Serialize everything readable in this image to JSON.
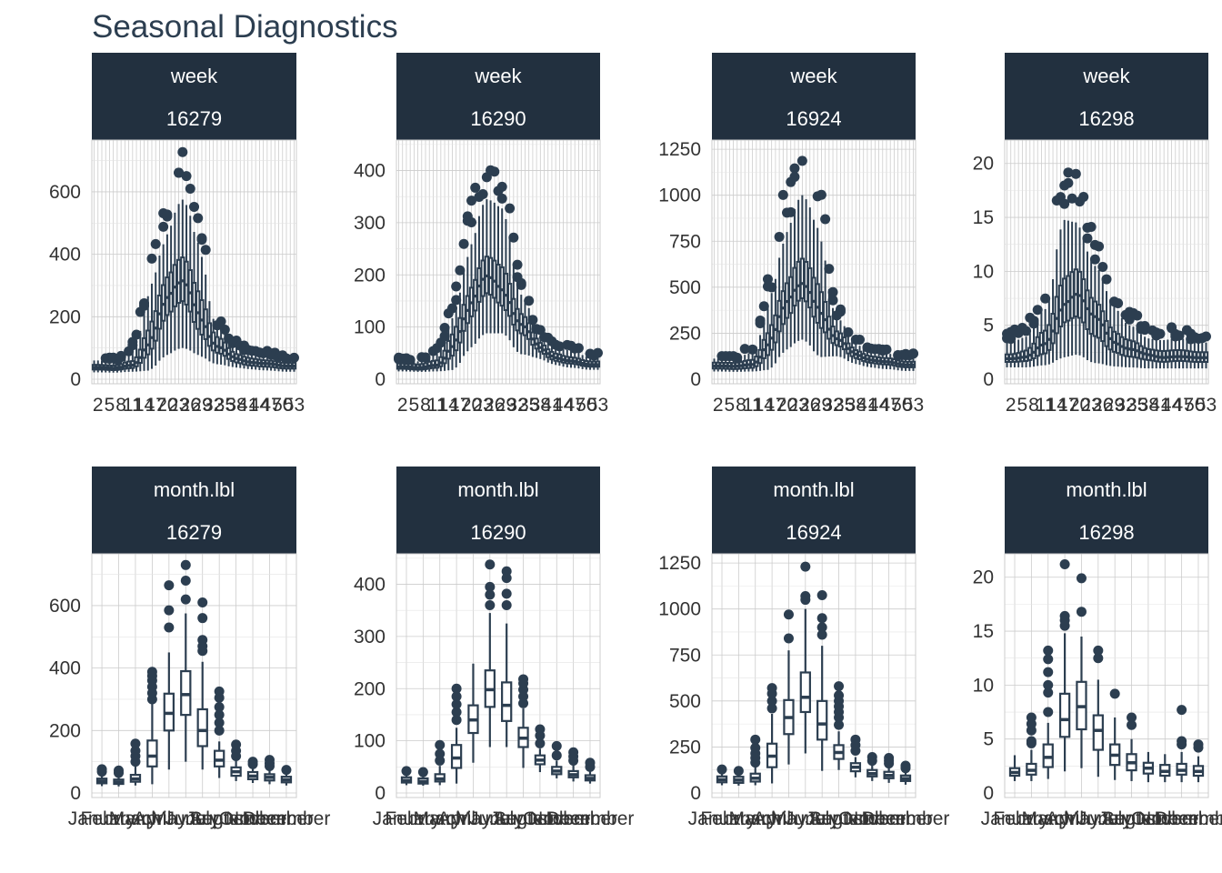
{
  "chart_data": {
    "type": "boxplot",
    "title": "Seasonal Diagnostics",
    "color": "#2c3e50",
    "strip_color": "#22303f",
    "facet_rows": [
      "week",
      "month.lbl"
    ],
    "facet_cols": [
      "16279",
      "16290",
      "16924",
      "16298"
    ],
    "week_tick_labels": [
      "2",
      "5",
      "8",
      "11",
      "14",
      "17",
      "20",
      "23",
      "26",
      "29",
      "32",
      "35",
      "38",
      "41",
      "44",
      "47",
      "50",
      "53"
    ],
    "month_tick_labels": [
      "January",
      "February",
      "March",
      "April",
      "May",
      "June",
      "July",
      "August",
      "September",
      "October",
      "November",
      "December"
    ],
    "panels": [
      {
        "row": "week",
        "col": "16279",
        "ylim": [
          0,
          760
        ],
        "yticks": [
          0,
          200,
          400,
          600
        ]
      },
      {
        "row": "week",
        "col": "16290",
        "ylim": [
          0,
          455
        ],
        "yticks": [
          0,
          100,
          200,
          300,
          400
        ]
      },
      {
        "row": "week",
        "col": "16924",
        "ylim": [
          0,
          1290
        ],
        "yticks": [
          0,
          250,
          500,
          750,
          1000,
          1250
        ]
      },
      {
        "row": "week",
        "col": "16298",
        "ylim": [
          0,
          22
        ],
        "yticks": [
          0,
          5,
          10,
          15,
          20
        ]
      },
      {
        "row": "month.lbl",
        "col": "16279",
        "ylim": [
          0,
          760
        ],
        "yticks": [
          0,
          200,
          400,
          600
        ],
        "boxes": [
          {
            "month": "January",
            "q1": 31,
            "med": 38,
            "q3": 46,
            "lo": 22,
            "hi": 60,
            "outliers": [
              68,
              76
            ]
          },
          {
            "month": "February",
            "q1": 29,
            "med": 35,
            "q3": 43,
            "lo": 21,
            "hi": 56,
            "outliers": [
              64,
              72
            ]
          },
          {
            "month": "March",
            "q1": 36,
            "med": 45,
            "q3": 58,
            "lo": 24,
            "hi": 88,
            "outliers": [
              100,
              118,
              135,
              158
            ]
          },
          {
            "month": "April",
            "q1": 85,
            "med": 118,
            "q3": 168,
            "lo": 28,
            "hi": 288,
            "outliers": [
              300,
              320,
              340,
              360,
              375,
              388
            ]
          },
          {
            "month": "May",
            "q1": 200,
            "med": 255,
            "q3": 318,
            "lo": 75,
            "hi": 450,
            "outliers": [
              530,
              585,
              665
            ]
          },
          {
            "month": "June",
            "q1": 250,
            "med": 315,
            "q3": 390,
            "lo": 100,
            "hi": 575,
            "outliers": [
              620,
              680,
              730
            ]
          },
          {
            "month": "July",
            "q1": 150,
            "med": 200,
            "q3": 268,
            "lo": 75,
            "hi": 420,
            "outliers": [
              455,
              470,
              490,
              560,
              610
            ]
          },
          {
            "month": "August",
            "q1": 85,
            "med": 105,
            "q3": 135,
            "lo": 48,
            "hi": 165,
            "outliers": [
              200,
              225,
              250,
              275,
              305,
              325
            ]
          },
          {
            "month": "September",
            "q1": 55,
            "med": 68,
            "q3": 82,
            "lo": 38,
            "hi": 105,
            "outliers": [
              118,
              135,
              155
            ]
          },
          {
            "month": "October",
            "q1": 44,
            "med": 54,
            "q3": 67,
            "lo": 32,
            "hi": 82,
            "outliers": [
              92,
              100
            ]
          },
          {
            "month": "November",
            "q1": 40,
            "med": 50,
            "q3": 60,
            "lo": 28,
            "hi": 76,
            "outliers": [
              86,
              95,
              106
            ]
          },
          {
            "month": "December",
            "q1": 34,
            "med": 42,
            "q3": 52,
            "lo": 24,
            "hi": 64,
            "outliers": [
              74
            ]
          }
        ]
      },
      {
        "row": "month.lbl",
        "col": "16290",
        "ylim": [
          0,
          455
        ],
        "yticks": [
          0,
          100,
          200,
          300,
          400
        ],
        "boxes": [
          {
            "month": "January",
            "q1": 20,
            "med": 24,
            "q3": 30,
            "lo": 15,
            "hi": 36,
            "outliers": [
              42
            ]
          },
          {
            "month": "February",
            "q1": 18,
            "med": 22,
            "q3": 28,
            "lo": 14,
            "hi": 34,
            "outliers": [
              40
            ]
          },
          {
            "month": "March",
            "q1": 22,
            "med": 27,
            "q3": 36,
            "lo": 15,
            "hi": 52,
            "outliers": [
              62,
              75,
              92
            ]
          },
          {
            "month": "April",
            "q1": 48,
            "med": 67,
            "q3": 92,
            "lo": 18,
            "hi": 125,
            "outliers": [
              140,
              155,
              170,
              185,
              200
            ]
          },
          {
            "month": "May",
            "q1": 115,
            "med": 140,
            "q3": 168,
            "lo": 58,
            "hi": 248,
            "outliers": []
          },
          {
            "month": "June",
            "q1": 165,
            "med": 198,
            "q3": 235,
            "lo": 88,
            "hi": 345,
            "outliers": [
              360,
              380,
              395,
              438
            ]
          },
          {
            "month": "July",
            "q1": 138,
            "med": 168,
            "q3": 212,
            "lo": 88,
            "hi": 325,
            "outliers": [
              360,
              382,
              412,
              425
            ]
          },
          {
            "month": "August",
            "q1": 88,
            "med": 105,
            "q3": 125,
            "lo": 48,
            "hi": 162,
            "outliers": [
              172,
              185,
              198,
              210,
              218
            ]
          },
          {
            "month": "September",
            "q1": 55,
            "med": 63,
            "q3": 72,
            "lo": 40,
            "hi": 85,
            "outliers": [
              95,
              110,
              122
            ]
          },
          {
            "month": "October",
            "q1": 36,
            "med": 42,
            "q3": 50,
            "lo": 28,
            "hi": 62,
            "outliers": [
              72,
              90
            ]
          },
          {
            "month": "November",
            "q1": 30,
            "med": 35,
            "q3": 42,
            "lo": 22,
            "hi": 55,
            "outliers": [
              62,
              70,
              78
            ]
          },
          {
            "month": "December",
            "q1": 24,
            "med": 28,
            "q3": 34,
            "lo": 18,
            "hi": 42,
            "outliers": [
              50,
              58
            ]
          }
        ]
      },
      {
        "row": "month.lbl",
        "col": "16924",
        "ylim": [
          0,
          1290
        ],
        "yticks": [
          0,
          250,
          500,
          750,
          1000,
          1250
        ],
        "boxes": [
          {
            "month": "January",
            "q1": 58,
            "med": 72,
            "q3": 90,
            "lo": 42,
            "hi": 112,
            "outliers": [
              128
            ]
          },
          {
            "month": "February",
            "q1": 55,
            "med": 70,
            "q3": 88,
            "lo": 40,
            "hi": 108,
            "outliers": [
              120
            ]
          },
          {
            "month": "March",
            "q1": 62,
            "med": 80,
            "q3": 105,
            "lo": 42,
            "hi": 145,
            "outliers": [
              165,
              190,
              215,
              245,
              290
            ]
          },
          {
            "month": "April",
            "q1": 140,
            "med": 200,
            "q3": 268,
            "lo": 52,
            "hi": 430,
            "outliers": [
              460,
              500,
              540,
              570
            ]
          },
          {
            "month": "May",
            "q1": 320,
            "med": 410,
            "q3": 505,
            "lo": 155,
            "hi": 775,
            "outliers": [
              840,
              970
            ]
          },
          {
            "month": "June",
            "q1": 440,
            "med": 520,
            "q3": 655,
            "lo": 215,
            "hi": 1000,
            "outliers": [
              1050,
              1070,
              1230
            ]
          },
          {
            "month": "July",
            "q1": 290,
            "med": 375,
            "q3": 500,
            "lo": 120,
            "hi": 800,
            "outliers": [
              860,
              900,
              950,
              1075
            ]
          },
          {
            "month": "August",
            "q1": 185,
            "med": 220,
            "q3": 260,
            "lo": 125,
            "hi": 335,
            "outliers": [
              370,
              410,
              440,
              470,
              500,
              530,
              580
            ]
          },
          {
            "month": "September",
            "q1": 118,
            "med": 140,
            "q3": 162,
            "lo": 85,
            "hi": 195,
            "outliers": [
              230,
              260,
              290
            ]
          },
          {
            "month": "October",
            "q1": 90,
            "med": 105,
            "q3": 125,
            "lo": 65,
            "hi": 155,
            "outliers": [
              175,
              195
            ]
          },
          {
            "month": "November",
            "q1": 80,
            "med": 95,
            "q3": 115,
            "lo": 55,
            "hi": 140,
            "outliers": [
              160,
              175,
              190
            ]
          },
          {
            "month": "December",
            "q1": 65,
            "med": 78,
            "q3": 95,
            "lo": 45,
            "hi": 118,
            "outliers": [
              135,
              148
            ]
          }
        ]
      },
      {
        "row": "month.lbl",
        "col": "16298",
        "ylim": [
          0,
          22
        ],
        "yticks": [
          0,
          5,
          10,
          15,
          20
        ],
        "boxes": [
          {
            "month": "January",
            "q1": 1.6,
            "med": 1.9,
            "q3": 2.3,
            "lo": 1.1,
            "hi": 3.5,
            "outliers": []
          },
          {
            "month": "February",
            "q1": 1.7,
            "med": 2.1,
            "q3": 2.7,
            "lo": 1.1,
            "hi": 4.0,
            "outliers": [
              4.6,
              4.8,
              5.8,
              6.4,
              7.0
            ]
          },
          {
            "month": "March",
            "q1": 2.4,
            "med": 3.3,
            "q3": 4.5,
            "lo": 1.3,
            "hi": 6.5,
            "outliers": [
              7.5,
              9.3,
              10.0,
              11.2,
              12.4,
              13.2
            ]
          },
          {
            "month": "April",
            "q1": 5.2,
            "med": 6.8,
            "q3": 9.2,
            "lo": 2.0,
            "hi": 14.8,
            "outliers": [
              15.5,
              16.0,
              16.4,
              21.2
            ]
          },
          {
            "month": "May",
            "q1": 5.9,
            "med": 8.0,
            "q3": 10.3,
            "lo": 2.3,
            "hi": 14.5,
            "outliers": [
              16.8,
              19.9
            ]
          },
          {
            "month": "June",
            "q1": 4.0,
            "med": 5.8,
            "q3": 7.2,
            "lo": 1.5,
            "hi": 10.5,
            "outliers": [
              12.5,
              13.2
            ]
          },
          {
            "month": "July",
            "q1": 2.6,
            "med": 3.5,
            "q3": 4.5,
            "lo": 1.2,
            "hi": 7.0,
            "outliers": [
              9.2
            ]
          },
          {
            "month": "August",
            "q1": 2.1,
            "med": 2.8,
            "q3": 3.6,
            "lo": 1.1,
            "hi": 5.0,
            "outliers": [
              6.3,
              7.0
            ]
          },
          {
            "month": "September",
            "q1": 1.8,
            "med": 2.3,
            "q3": 2.8,
            "lo": 1.0,
            "hi": 3.8,
            "outliers": []
          },
          {
            "month": "October",
            "q1": 1.6,
            "med": 2.0,
            "q3": 2.6,
            "lo": 1.0,
            "hi": 3.6,
            "outliers": []
          },
          {
            "month": "November",
            "q1": 1.7,
            "med": 2.1,
            "q3": 2.7,
            "lo": 1.0,
            "hi": 3.8,
            "outliers": [
              4.5,
              4.8,
              7.7
            ]
          },
          {
            "month": "December",
            "q1": 1.6,
            "med": 2.0,
            "q3": 2.5,
            "lo": 1.0,
            "hi": 3.4,
            "outliers": [
              4.2,
              4.5
            ]
          }
        ]
      }
    ]
  }
}
